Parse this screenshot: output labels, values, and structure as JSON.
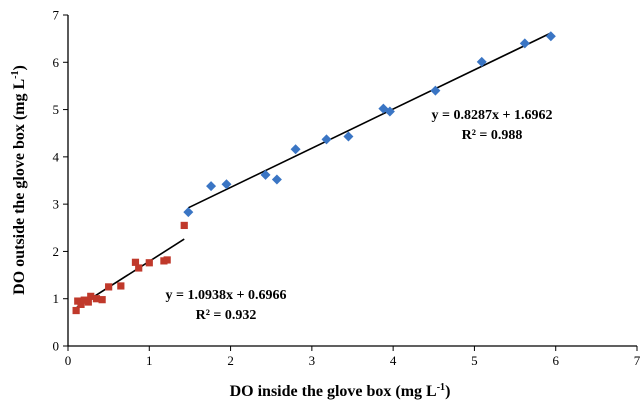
{
  "chart_data": {
    "type": "scatter",
    "xlabel": {
      "main": "DO inside the glove box (mg L",
      "sup": "-1",
      "close": ")"
    },
    "ylabel": {
      "main": "DO outside the glove box (mg L",
      "sup": "-1",
      "close": ")"
    },
    "xlim": [
      0,
      7
    ],
    "ylim": [
      0,
      7
    ],
    "x_ticks": [
      "0",
      "1",
      "2",
      "3",
      "4",
      "5",
      "6",
      "7"
    ],
    "y_ticks": [
      "0",
      "1",
      "2",
      "3",
      "4",
      "5",
      "6",
      "7"
    ],
    "grid": false,
    "series": [
      {
        "marker": "square",
        "color": "#c0392b",
        "points": [
          [
            0.1,
            0.75
          ],
          [
            0.12,
            0.95
          ],
          [
            0.16,
            0.88
          ],
          [
            0.2,
            0.97
          ],
          [
            0.25,
            0.93
          ],
          [
            0.28,
            1.05
          ],
          [
            0.35,
            1.0
          ],
          [
            0.42,
            0.98
          ],
          [
            0.5,
            1.25
          ],
          [
            0.65,
            1.27
          ],
          [
            0.83,
            1.77
          ],
          [
            0.87,
            1.65
          ],
          [
            1.0,
            1.76
          ],
          [
            1.18,
            1.8
          ],
          [
            1.22,
            1.82
          ],
          [
            1.43,
            2.55
          ]
        ],
        "trendline": {
          "slope": 1.0938,
          "intercept": 0.6966,
          "x_range": [
            0.1,
            1.43
          ]
        },
        "equation": "y = 1.0938x + 0.6966",
        "r2": "R² = 0.932"
      },
      {
        "marker": "diamond",
        "color": "#3a75c4",
        "points": [
          [
            1.48,
            2.83
          ],
          [
            1.76,
            3.38
          ],
          [
            1.95,
            3.42
          ],
          [
            2.43,
            3.62
          ],
          [
            2.57,
            3.52
          ],
          [
            2.8,
            4.16
          ],
          [
            3.18,
            4.37
          ],
          [
            3.45,
            4.43
          ],
          [
            3.88,
            5.02
          ],
          [
            3.96,
            4.96
          ],
          [
            4.52,
            5.4
          ],
          [
            5.09,
            6.01
          ],
          [
            5.62,
            6.4
          ],
          [
            5.94,
            6.55
          ]
        ],
        "trendline": {
          "slope": 0.8287,
          "intercept": 1.6962,
          "x_range": [
            1.48,
            5.94
          ]
        },
        "equation": "y = 0.8287x + 1.6962",
        "r2": "R² = 0.988"
      }
    ]
  }
}
